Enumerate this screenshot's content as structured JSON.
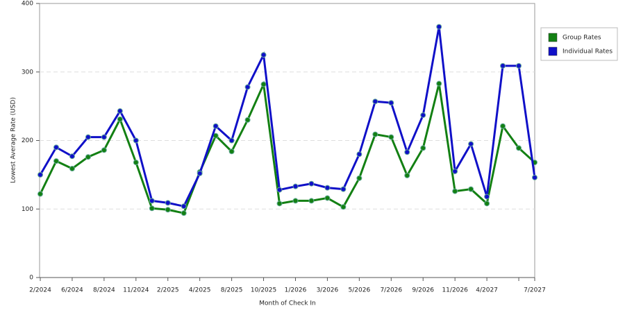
{
  "chart_data": {
    "type": "line",
    "x_label": "Month of Check In",
    "y_label": "Lowest Average Rate (USD)",
    "categories": [
      "2/2024",
      null,
      "6/2024",
      null,
      "8/2024",
      null,
      "11/2024",
      null,
      "2/2025",
      null,
      "4/2025",
      null,
      "8/2025",
      null,
      "10/2025",
      null,
      "1/2026",
      null,
      "3/2026",
      null,
      "5/2026",
      null,
      "7/2026",
      null,
      "9/2026",
      null,
      "11/2026",
      null,
      "4/2027",
      null,
      null,
      "7/2027"
    ],
    "series": [
      {
        "name": "Group Rates",
        "color": "#138013",
        "values": [
          122,
          170,
          159,
          176,
          186,
          231,
          168,
          101,
          99,
          94,
          154,
          207,
          184,
          230,
          282,
          108,
          112,
          112,
          116,
          103,
          145,
          209,
          205,
          149,
          189,
          283,
          126,
          129,
          108,
          221,
          189,
          168
        ]
      },
      {
        "name": "Individual Rates",
        "color": "#1010c8",
        "values": [
          150,
          190,
          177,
          205,
          205,
          243,
          200,
          112,
          109,
          104,
          152,
          221,
          200,
          278,
          325,
          128,
          133,
          137,
          131,
          129,
          180,
          257,
          255,
          183,
          237,
          366,
          155,
          195,
          118,
          309,
          309,
          146
        ]
      }
    ],
    "ylim": [
      0,
      400
    ],
    "yticks": [
      0,
      100,
      200,
      300,
      400
    ],
    "grid": true,
    "legend": "right"
  }
}
